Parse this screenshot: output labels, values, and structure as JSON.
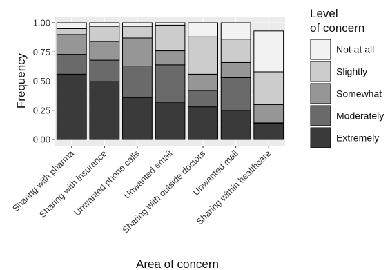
{
  "chart_data": {
    "type": "bar",
    "stacked": true,
    "normalized": true,
    "xlabel": "Area of concern",
    "ylabel": "Frequency",
    "ylim": [
      0,
      1
    ],
    "yticks": [
      "0.00",
      "0.25",
      "0.50",
      "0.75",
      "1.00"
    ],
    "grid": true,
    "legend_position": "right",
    "legend_title_lines": [
      "Level",
      "of concern"
    ],
    "categories": [
      "Sharing with pharma",
      "Sharing with insurance",
      "Unwanted phone calls",
      "Unwanted email",
      "Sharing with outside doctors",
      "Unwanted mail",
      "Sharing within healthcare"
    ],
    "series": [
      {
        "name": "Extremely",
        "color": "#3a3a3a",
        "values": [
          0.56,
          0.5,
          0.36,
          0.32,
          0.28,
          0.25,
          0.14
        ]
      },
      {
        "name": "Moderately",
        "color": "#6a6a6a",
        "values": [
          0.17,
          0.18,
          0.27,
          0.32,
          0.14,
          0.28,
          0.01
        ]
      },
      {
        "name": "Somewhat",
        "color": "#969696",
        "values": [
          0.17,
          0.16,
          0.24,
          0.12,
          0.14,
          0.13,
          0.15
        ]
      },
      {
        "name": "Slightly",
        "color": "#cccccc",
        "values": [
          0.05,
          0.13,
          0.1,
          0.22,
          0.32,
          0.2,
          0.28
        ]
      },
      {
        "name": "Not at all",
        "color": "#f2f2f2",
        "values": [
          0.05,
          0.03,
          0.03,
          0.02,
          0.12,
          0.14,
          0.35
        ]
      }
    ],
    "legend_order": [
      "Not at all",
      "Slightly",
      "Somewhat",
      "Moderately",
      "Extremely"
    ]
  }
}
